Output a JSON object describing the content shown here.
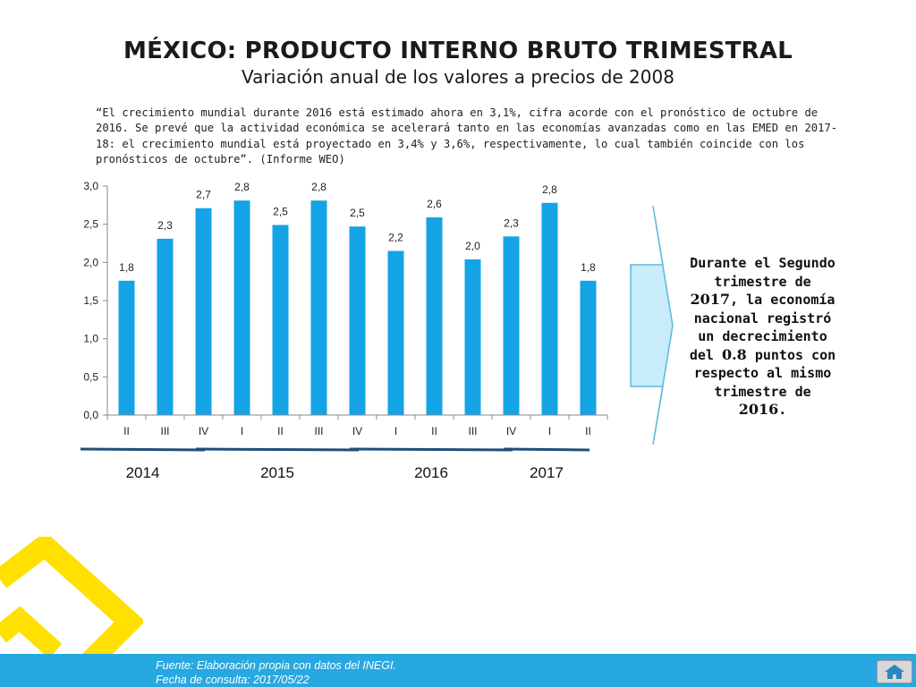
{
  "title": "MÉXICO: PRODUCTO INTERNO BRUTO TRIMESTRAL",
  "subtitle": "Variación anual de los valores a precios de 2008",
  "quote": "“El crecimiento mundial durante 2016 está estimado ahora en 3,1%, cifra acorde con el pronóstico de octubre de 2016. Se prevé que la actividad económica se acelerará tanto en las economías avanzadas como en las EMED en 2017-18: el crecimiento mundial está proyectado en 3,4% y 3,6%, respectivamente, lo cual también coincide con los pronósticos de octubre”. (Informe WEO)",
  "callout": {
    "line1": "Durante el Segundo trimestre de",
    "year1": "2017",
    "line2": ", la economía nacional registró un decrecimiento del",
    "amount": "0.8",
    "line3": "puntos con respecto al mismo trimestre de",
    "year2": "2016",
    "end": "."
  },
  "footer": {
    "source": "Fuente: Elaboración propia con datos del INEGI.",
    "date": "Fecha de consulta: 2017/05/22"
  },
  "colors": {
    "bar": "#14a4e6",
    "arrow_fill": "#c9ecfa",
    "arrow_stroke": "#5ab8e0",
    "footer": "#27a8e0",
    "logo": "#ffe000",
    "year_line": "#1f4e79"
  },
  "icons": {
    "home": "home-icon",
    "logo": "logo-icon"
  },
  "chart_data": {
    "type": "bar",
    "categories": [
      "II",
      "III",
      "IV",
      "I",
      "II",
      "III",
      "IV",
      "I",
      "II",
      "III",
      "IV",
      "I",
      "II"
    ],
    "values": [
      1.8,
      2.3,
      2.7,
      2.8,
      2.5,
      2.8,
      2.5,
      2.2,
      2.6,
      2.0,
      2.3,
      2.8,
      1.8
    ],
    "value_labels": [
      "1,8",
      "2,3",
      "2,7",
      "2,8",
      "2,5",
      "2,8",
      "2,5",
      "2,2",
      "2,6",
      "2,0",
      "2,3",
      "2,8",
      "1,8"
    ],
    "bar_values": [
      1.76,
      2.31,
      2.71,
      2.81,
      2.49,
      2.81,
      2.47,
      2.15,
      2.59,
      2.04,
      2.34,
      2.78,
      1.76
    ],
    "ylim": [
      0,
      3
    ],
    "yticks": [
      0,
      0.5,
      1,
      1.5,
      2,
      2.5,
      3
    ],
    "ytick_labels": [
      "0,0",
      "0,5",
      "1,0",
      "1,5",
      "2,0",
      "2,5",
      "3,0"
    ],
    "year_groups": [
      {
        "label": "2014",
        "start": 0,
        "end": 2
      },
      {
        "label": "2015",
        "start": 3,
        "end": 6
      },
      {
        "label": "2016",
        "start": 7,
        "end": 10
      },
      {
        "label": "2017",
        "start": 11,
        "end": 12
      }
    ],
    "grid": false,
    "legend": "none"
  }
}
